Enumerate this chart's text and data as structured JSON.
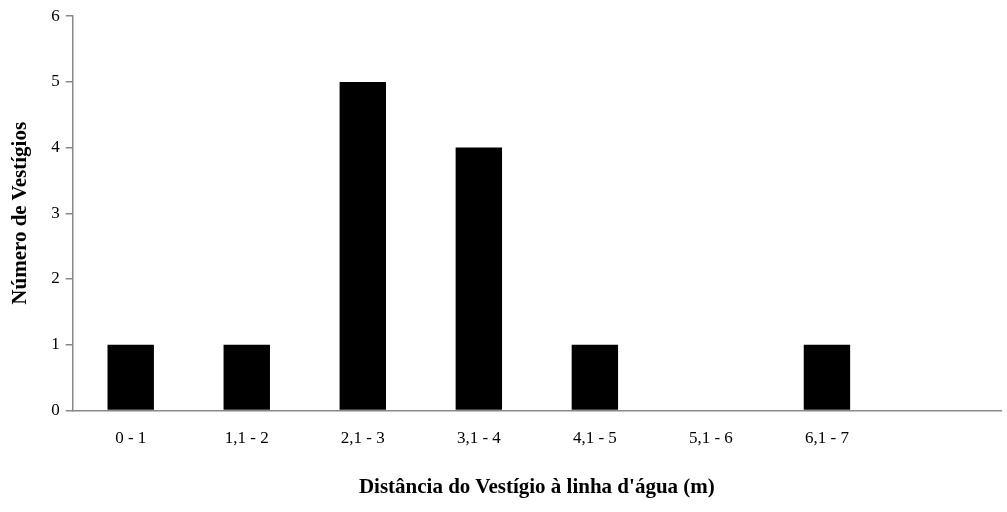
{
  "chart_data": {
    "type": "bar",
    "xlabel": "Distância do Vestígio à linha d'água (m)",
    "ylabel": "Número de Vestígios",
    "categories": [
      "0 - 1",
      "1,1 - 2",
      "2,1 - 3",
      "3,1 - 4",
      "4,1 - 5",
      "5,1 - 6",
      "6,1 - 7",
      null
    ],
    "values": [
      1,
      1,
      5,
      4,
      1,
      0,
      1,
      null
    ],
    "color": "#000000",
    "ylim": [
      0,
      6
    ],
    "yticks": [
      0,
      1,
      2,
      3,
      4,
      5,
      6
    ],
    "grid": false,
    "legend": false
  }
}
